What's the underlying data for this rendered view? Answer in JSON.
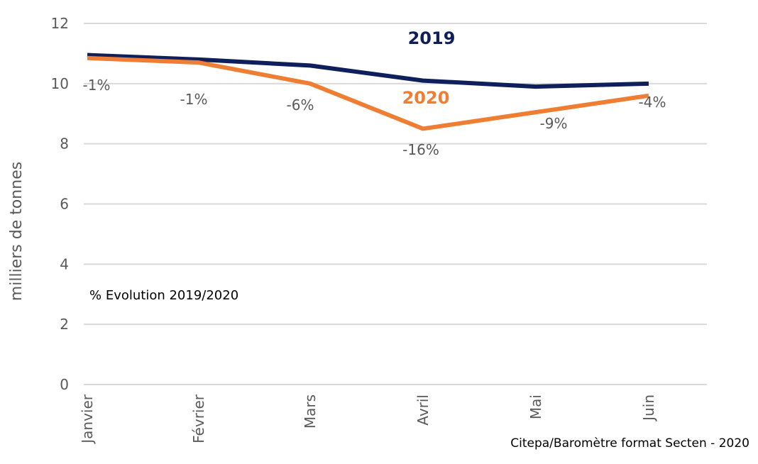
{
  "chart_data": {
    "type": "line",
    "categories": [
      "Janvier",
      "Février",
      "Mars",
      "Avril",
      "Mai",
      "Juin"
    ],
    "series": [
      {
        "name": "2019",
        "values": [
          10.95,
          10.8,
          10.6,
          10.1,
          9.9,
          10.0
        ],
        "color": "#0f1f5c"
      },
      {
        "name": "2020",
        "values": [
          10.85,
          10.7,
          10.0,
          8.5,
          9.05,
          9.6
        ],
        "color": "#ef7d32"
      }
    ],
    "percent_labels": [
      "-1%",
      "-1%",
      "-6%",
      "-16%",
      "-9%",
      "-4%"
    ],
    "ylabel": "milliers de tonnes",
    "ylim": [
      0,
      12
    ],
    "yticks": [
      "0",
      "2",
      "4",
      "6",
      "8",
      "10",
      "12"
    ],
    "grid": true,
    "annotation": "% Evolution 2019/2020",
    "source": "Citepa/Baromètre format Secten - 2020"
  }
}
